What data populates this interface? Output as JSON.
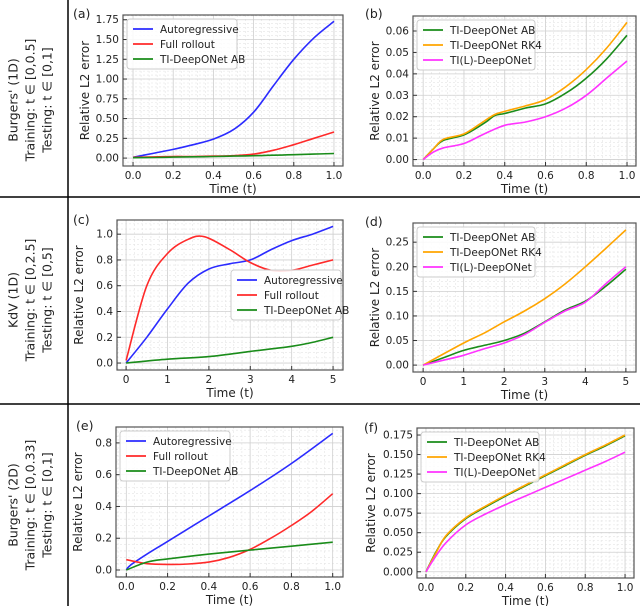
{
  "row_labels": [
    {
      "lines": [
        "Burgers' (1D)",
        "Training: t ∈ [0,0.5]",
        "Testing: t ∈ [0,1]"
      ]
    },
    {
      "lines": [
        "KdV (1D)",
        "Training: t ∈ [0,2.5]",
        "Testing: t ∈ [0,5]"
      ]
    },
    {
      "lines": [
        "Burgers' (2D)",
        "Training: t ∈ [0,0.33]",
        "Testing: t ∈ [0,1]"
      ]
    }
  ],
  "chart_data": [
    {
      "panel": "(a)",
      "type": "line",
      "xlabel": "Time (t)",
      "ylabel": "Relative L2 error",
      "xlim": [
        -0.05,
        1.045
      ],
      "ylim": [
        -0.1,
        1.81
      ],
      "xticks": [
        "0.0",
        "0.2",
        "0.4",
        "0.6",
        "0.8",
        "1.0"
      ],
      "yticks": [
        "0.00",
        "0.25",
        "0.50",
        "0.75",
        "1.00",
        "1.25",
        "1.50",
        "1.75"
      ],
      "grid": true,
      "legend": "top-left",
      "series": [
        {
          "name": "Autoregressive",
          "color": "#2b2bff",
          "x": [
            0,
            0.1,
            0.2,
            0.3,
            0.4,
            0.5,
            0.6,
            0.7,
            0.8,
            0.9,
            1.0
          ],
          "y": [
            0.01,
            0.06,
            0.11,
            0.17,
            0.24,
            0.36,
            0.58,
            0.92,
            1.25,
            1.52,
            1.73
          ]
        },
        {
          "name": "Full rollout",
          "color": "#ff2a2a",
          "x": [
            0,
            0.1,
            0.2,
            0.3,
            0.4,
            0.5,
            0.6,
            0.7,
            0.8,
            0.9,
            1.0
          ],
          "y": [
            0.01,
            0.015,
            0.02,
            0.02,
            0.025,
            0.03,
            0.05,
            0.1,
            0.17,
            0.25,
            0.33
          ]
        },
        {
          "name": "TI-DeepONet AB",
          "color": "#1a8c1a",
          "x": [
            0,
            0.1,
            0.2,
            0.3,
            0.4,
            0.5,
            0.6,
            0.7,
            0.8,
            0.9,
            1.0
          ],
          "y": [
            0.005,
            0.008,
            0.012,
            0.016,
            0.02,
            0.025,
            0.03,
            0.036,
            0.043,
            0.05,
            0.058
          ]
        }
      ]
    },
    {
      "panel": "(b)",
      "type": "line",
      "xlabel": "Time (t)",
      "ylabel": "Relative L2 error",
      "xlim": [
        -0.05,
        1.044
      ],
      "ylim": [
        -0.003,
        0.067
      ],
      "xticks": [
        "0.0",
        "0.2",
        "0.4",
        "0.6",
        "0.8",
        "1.0"
      ],
      "yticks": [
        "0.00",
        "0.01",
        "0.02",
        "0.03",
        "0.04",
        "0.05",
        "0.06"
      ],
      "grid": true,
      "legend": "top-left",
      "series": [
        {
          "name": "TI-DeepONet AB",
          "color": "#1a8c1a",
          "x": [
            0,
            0.05,
            0.1,
            0.2,
            0.3,
            0.35,
            0.4,
            0.5,
            0.6,
            0.7,
            0.8,
            0.9,
            1.0
          ],
          "y": [
            0,
            0.005,
            0.009,
            0.0115,
            0.017,
            0.0205,
            0.0215,
            0.024,
            0.026,
            0.031,
            0.038,
            0.047,
            0.058
          ]
        },
        {
          "name": "TI-DeepONet RK4",
          "color": "#ffa500",
          "x": [
            0,
            0.05,
            0.1,
            0.2,
            0.3,
            0.35,
            0.4,
            0.5,
            0.6,
            0.7,
            0.8,
            0.9,
            1.0
          ],
          "y": [
            0,
            0.005,
            0.0095,
            0.012,
            0.018,
            0.021,
            0.0225,
            0.025,
            0.028,
            0.034,
            0.042,
            0.052,
            0.064
          ]
        },
        {
          "name": "TI(L)-DeepONet",
          "color": "#ff33ff",
          "x": [
            0,
            0.05,
            0.1,
            0.2,
            0.3,
            0.4,
            0.5,
            0.6,
            0.7,
            0.8,
            0.9,
            1.0
          ],
          "y": [
            0,
            0.0035,
            0.0055,
            0.0075,
            0.012,
            0.016,
            0.0175,
            0.02,
            0.024,
            0.03,
            0.038,
            0.046
          ]
        }
      ]
    },
    {
      "panel": "(c)",
      "type": "line",
      "xlabel": "Time (t)",
      "ylabel": "Relative L2 error",
      "xlim": [
        -0.22,
        5.24
      ],
      "ylim": [
        -0.054,
        1.11
      ],
      "xticks": [
        "0",
        "1",
        "2",
        "3",
        "4",
        "5"
      ],
      "yticks": [
        "0.0",
        "0.2",
        "0.4",
        "0.6",
        "0.8",
        "1.0"
      ],
      "grid": true,
      "legend": "center-right",
      "series": [
        {
          "name": "Autoregressive",
          "color": "#2b2bff",
          "x": [
            0,
            0.5,
            1,
            1.5,
            2,
            2.5,
            3,
            3.5,
            4,
            4.5,
            5
          ],
          "y": [
            0,
            0.2,
            0.42,
            0.62,
            0.73,
            0.77,
            0.8,
            0.88,
            0.95,
            1.0,
            1.06
          ]
        },
        {
          "name": "Full rollout",
          "color": "#ff2a2a",
          "x": [
            0,
            0.5,
            1,
            1.5,
            1.9,
            2.5,
            3,
            3.5,
            4,
            4.5,
            5
          ],
          "y": [
            0.02,
            0.6,
            0.85,
            0.96,
            0.98,
            0.88,
            0.78,
            0.72,
            0.72,
            0.76,
            0.8
          ]
        },
        {
          "name": "TI-DeepONet AB",
          "color": "#1a8c1a",
          "x": [
            0,
            1,
            2,
            3,
            4,
            4.5,
            5
          ],
          "y": [
            0,
            0.03,
            0.05,
            0.09,
            0.13,
            0.16,
            0.2
          ]
        }
      ]
    },
    {
      "panel": "(d)",
      "type": "line",
      "xlabel": "Time (t)",
      "ylabel": "Relative L2 error",
      "xlim": [
        -0.25,
        5.25
      ],
      "ylim": [
        -0.014,
        0.289
      ],
      "xticks": [
        "0",
        "1",
        "2",
        "3",
        "4",
        "5"
      ],
      "yticks": [
        "0.00",
        "0.05",
        "0.10",
        "0.15",
        "0.20",
        "0.25"
      ],
      "grid": true,
      "legend": "top-left",
      "series": [
        {
          "name": "TI-DeepONet AB",
          "color": "#1a8c1a",
          "x": [
            0,
            0.5,
            1,
            1.5,
            2,
            2.5,
            3,
            3.5,
            4,
            4.5,
            5
          ],
          "y": [
            0,
            0.015,
            0.03,
            0.04,
            0.05,
            0.065,
            0.088,
            0.112,
            0.13,
            0.16,
            0.195
          ]
        },
        {
          "name": "TI-DeepONet RK4",
          "color": "#ffa500",
          "x": [
            0,
            1,
            1.5,
            2,
            2.5,
            3,
            3.5,
            4,
            4.5,
            5
          ],
          "y": [
            0,
            0.045,
            0.065,
            0.088,
            0.11,
            0.135,
            0.165,
            0.2,
            0.237,
            0.275
          ]
        },
        {
          "name": "TI(L)-DeepONet",
          "color": "#ff33ff",
          "x": [
            0,
            0.5,
            1,
            1.5,
            2,
            2.5,
            3,
            3.5,
            4,
            4.5,
            5
          ],
          "y": [
            0,
            0.01,
            0.02,
            0.033,
            0.045,
            0.062,
            0.087,
            0.11,
            0.128,
            0.165,
            0.2
          ]
        }
      ]
    },
    {
      "panel": "(e)",
      "type": "line",
      "xlabel": "Time (t)",
      "ylabel": "Relative L2 error",
      "xlim": [
        -0.05,
        1.05
      ],
      "ylim": [
        -0.044,
        0.9
      ],
      "xticks": [
        "0.0",
        "0.2",
        "0.4",
        "0.6",
        "0.8",
        "1.0"
      ],
      "yticks": [
        "0.0",
        "0.2",
        "0.4",
        "0.6",
        "0.8"
      ],
      "grid": true,
      "legend": "top-left",
      "series": [
        {
          "name": "Autoregressive",
          "color": "#2b2bff",
          "x": [
            0,
            0.02,
            0.1,
            0.2,
            0.4,
            0.6,
            0.8,
            1.0
          ],
          "y": [
            0,
            0.03,
            0.1,
            0.18,
            0.34,
            0.5,
            0.67,
            0.86
          ]
        },
        {
          "name": "Full rollout",
          "color": "#ff2a2a",
          "x": [
            0,
            0.1,
            0.2,
            0.3,
            0.4,
            0.5,
            0.6,
            0.7,
            0.8,
            0.9,
            1.0
          ],
          "y": [
            0.065,
            0.04,
            0.035,
            0.038,
            0.05,
            0.08,
            0.13,
            0.2,
            0.28,
            0.37,
            0.48
          ]
        },
        {
          "name": "TI-DeepONet AB",
          "color": "#1a8c1a",
          "x": [
            0,
            0.1,
            0.2,
            0.4,
            0.6,
            0.8,
            1.0
          ],
          "y": [
            0,
            0.05,
            0.07,
            0.1,
            0.125,
            0.15,
            0.175
          ]
        }
      ]
    },
    {
      "panel": "(f)",
      "type": "line",
      "xlabel": "Time (t)",
      "ylabel": "Relative L2 error",
      "xlim": [
        -0.045,
        1.045
      ],
      "ylim": [
        -0.008,
        0.184
      ],
      "xticks": [
        "0.0",
        "0.2",
        "0.4",
        "0.6",
        "0.8",
        "1.0"
      ],
      "yticks": [
        "0.000",
        "0.025",
        "0.050",
        "0.075",
        "0.100",
        "0.125",
        "0.150",
        "0.175"
      ],
      "grid": true,
      "legend": "top-left",
      "series": [
        {
          "name": "TI-DeepONet AB",
          "color": "#1a8c1a",
          "x": [
            0,
            0.05,
            0.1,
            0.2,
            0.3,
            0.4,
            0.5,
            0.6,
            0.7,
            0.8,
            0.9,
            1.0
          ],
          "y": [
            0,
            0.025,
            0.045,
            0.068,
            0.083,
            0.097,
            0.11,
            0.123,
            0.136,
            0.149,
            0.161,
            0.174
          ]
        },
        {
          "name": "TI-DeepONet RK4",
          "color": "#ffa500",
          "x": [
            0,
            0.05,
            0.1,
            0.2,
            0.3,
            0.4,
            0.5,
            0.6,
            0.7,
            0.8,
            0.9,
            1.0
          ],
          "y": [
            0,
            0.024,
            0.046,
            0.069,
            0.084,
            0.098,
            0.111,
            0.124,
            0.137,
            0.15,
            0.162,
            0.175
          ]
        },
        {
          "name": "TI(L)-DeepONet",
          "color": "#ff33ff",
          "x": [
            0,
            0.05,
            0.1,
            0.2,
            0.3,
            0.4,
            0.5,
            0.6,
            0.7,
            0.8,
            0.9,
            1.0
          ],
          "y": [
            0,
            0.02,
            0.037,
            0.06,
            0.074,
            0.086,
            0.097,
            0.108,
            0.119,
            0.13,
            0.141,
            0.153
          ]
        }
      ]
    }
  ]
}
